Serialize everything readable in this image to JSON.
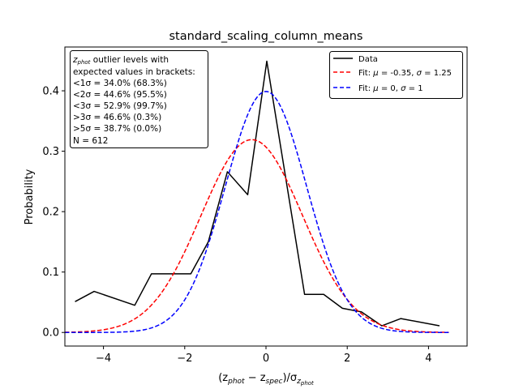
{
  "chart_data": {
    "type": "line",
    "title": "standard_scaling_column_means",
    "xlabel_parts": {
      "open": "(z",
      "phot": "phot",
      "minus": " − z",
      "spec": "spec",
      "close": ")/σ",
      "z": "z",
      "phot2": "phot"
    },
    "ylabel": "Probability",
    "xlim": [
      -4.95,
      4.95
    ],
    "ylim": [
      -0.0225,
      0.4725
    ],
    "xticks": [
      -4,
      -2,
      0,
      2,
      4
    ],
    "xtick_labels": [
      "−4",
      "−2",
      "0",
      "2",
      "4"
    ],
    "yticks": [
      0.0,
      0.1,
      0.2,
      0.3,
      0.4
    ],
    "ytick_labels": [
      "0.0",
      "0.1",
      "0.2",
      "0.3",
      "0.4"
    ],
    "grid": false,
    "legend_placement": "top-right",
    "series": [
      {
        "name": "Data",
        "style": "solid",
        "color": "#000000",
        "x": [
          -4.7,
          -4.23,
          -3.23,
          -2.82,
          -1.85,
          -1.42,
          -0.95,
          -0.45,
          0.02,
          0.95,
          1.42,
          1.88,
          2.35,
          2.85,
          3.32,
          4.27
        ],
        "y": [
          0.051,
          0.068,
          0.045,
          0.097,
          0.097,
          0.15,
          0.266,
          0.228,
          0.449,
          0.063,
          0.063,
          0.04,
          0.034,
          0.011,
          0.023,
          0.011
        ]
      },
      {
        "name_prefix": "Fit: ",
        "name_mu": "μ",
        "name_mid": " = -0.35, ",
        "name_sigma": "σ",
        "name_suffix": " = 1.25",
        "style": "dashed",
        "color": "#ff0000",
        "gauss": {
          "mu": -0.35,
          "sigma": 1.25
        },
        "x_range": [
          -4.95,
          4.5
        ]
      },
      {
        "name_prefix": "Fit: ",
        "name_mu": "μ",
        "name_mid": " = 0, ",
        "name_sigma": "σ",
        "name_suffix": " = 1",
        "style": "dashed",
        "color": "#0000ff",
        "gauss": {
          "mu": 0,
          "sigma": 1
        },
        "x_range": [
          -4.95,
          4.5
        ]
      }
    ],
    "legend": {
      "data_label": "Data"
    },
    "annotation": {
      "line1_var": "z",
      "line1_sub": "phot",
      "line1_rest": " outlier levels with",
      "line2": " expected values in brackets:",
      "levels": [
        {
          "op": "<1σ",
          "val": " = 34.0% (68.3%)"
        },
        {
          "op": "<2σ",
          "val": " = 44.6% (95.5%)"
        },
        {
          "op": "<3σ",
          "val": " = 52.9% (99.7%)"
        },
        {
          "op": ">3σ",
          "val": " = 46.6% (0.3%)"
        },
        {
          "op": ">5σ",
          "val": " = 38.7% (0.0%)"
        }
      ],
      "count": "N = 612"
    }
  }
}
